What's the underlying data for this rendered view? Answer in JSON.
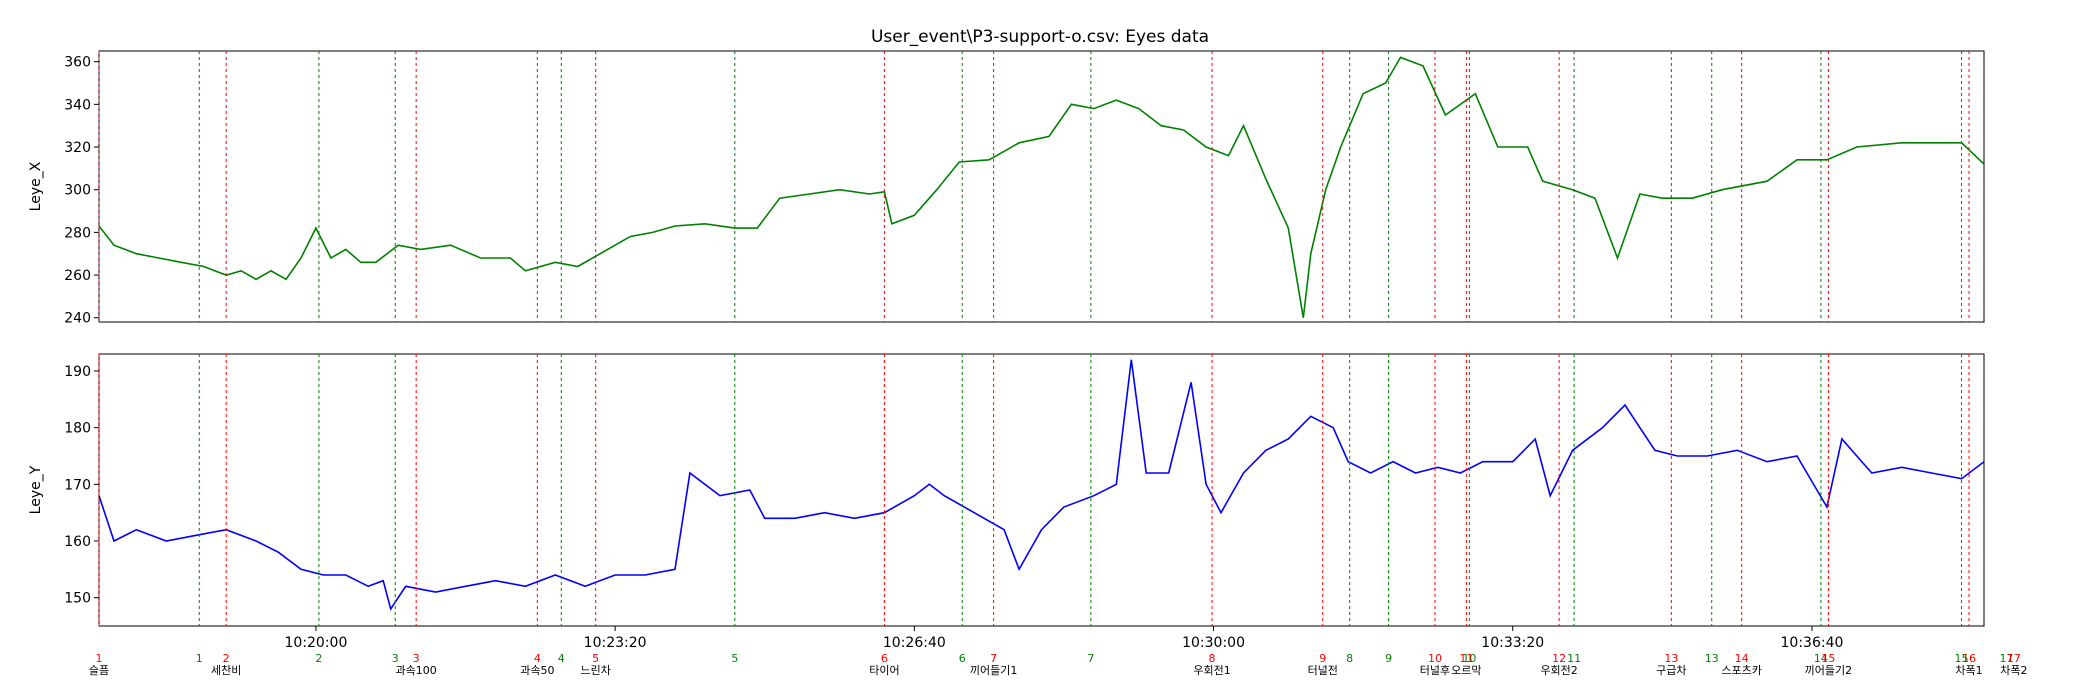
{
  "chart_data": {
    "type": "line",
    "title": "User_event\\P3-support-o.csv: Eyes data",
    "x_range": [
      "10:17:35",
      "10:38:35"
    ],
    "x_ticks": [
      "10:20:00",
      "10:23:20",
      "10:26:40",
      "10:30:00",
      "10:33:20",
      "10:36:40"
    ],
    "grid": false,
    "panels": [
      {
        "ylabel": "Leye_X",
        "color": "#008000",
        "ylim": [
          238,
          365
        ],
        "yticks": [
          240,
          260,
          280,
          300,
          320,
          340,
          360
        ],
        "series": [
          {
            "values": [
              [
                "10:17:35",
                283
              ],
              [
                "10:17:45",
                274
              ],
              [
                "10:18:00",
                270
              ],
              [
                "10:18:15",
                268
              ],
              [
                "10:18:30",
                266
              ],
              [
                "10:18:45",
                264
              ],
              [
                "10:19:00",
                260
              ],
              [
                "10:19:10",
                262
              ],
              [
                "10:19:20",
                258
              ],
              [
                "10:19:30",
                262
              ],
              [
                "10:19:40",
                258
              ],
              [
                "10:19:50",
                268
              ],
              [
                "10:20:00",
                282
              ],
              [
                "10:20:10",
                268
              ],
              [
                "10:20:20",
                272
              ],
              [
                "10:20:30",
                266
              ],
              [
                "10:20:40",
                266
              ],
              [
                "10:20:55",
                274
              ],
              [
                "10:21:10",
                272
              ],
              [
                "10:21:30",
                274
              ],
              [
                "10:21:50",
                268
              ],
              [
                "10:22:10",
                268
              ],
              [
                "10:22:20",
                262
              ],
              [
                "10:22:40",
                266
              ],
              [
                "10:22:55",
                264
              ],
              [
                "10:23:10",
                270
              ],
              [
                "10:23:20",
                274
              ],
              [
                "10:23:30",
                278
              ],
              [
                "10:23:45",
                280
              ],
              [
                "10:24:00",
                283
              ],
              [
                "10:24:20",
                284
              ],
              [
                "10:24:40",
                282
              ],
              [
                "10:24:55",
                282
              ],
              [
                "10:25:10",
                296
              ],
              [
                "10:25:30",
                298
              ],
              [
                "10:25:50",
                300
              ],
              [
                "10:26:10",
                298
              ],
              [
                "10:26:20",
                299
              ],
              [
                "10:26:25",
                284
              ],
              [
                "10:26:40",
                288
              ],
              [
                "10:26:55",
                300
              ],
              [
                "10:27:10",
                313
              ],
              [
                "10:27:30",
                314
              ],
              [
                "10:27:50",
                322
              ],
              [
                "10:28:10",
                325
              ],
              [
                "10:28:25",
                340
              ],
              [
                "10:28:40",
                338
              ],
              [
                "10:28:55",
                342
              ],
              [
                "10:29:10",
                338
              ],
              [
                "10:29:25",
                330
              ],
              [
                "10:29:40",
                328
              ],
              [
                "10:29:55",
                320
              ],
              [
                "10:30:10",
                316
              ],
              [
                "10:30:20",
                330
              ],
              [
                "10:30:35",
                305
              ],
              [
                "10:30:50",
                282
              ],
              [
                "10:31:00",
                240
              ],
              [
                "10:31:05",
                270
              ],
              [
                "10:31:15",
                300
              ],
              [
                "10:31:25",
                320
              ],
              [
                "10:31:40",
                345
              ],
              [
                "10:31:55",
                350
              ],
              [
                "10:32:05",
                362
              ],
              [
                "10:32:20",
                358
              ],
              [
                "10:32:35",
                335
              ],
              [
                "10:32:55",
                345
              ],
              [
                "10:33:10",
                320
              ],
              [
                "10:33:30",
                320
              ],
              [
                "10:33:40",
                304
              ],
              [
                "10:34:00",
                300
              ],
              [
                "10:34:15",
                296
              ],
              [
                "10:34:30",
                268
              ],
              [
                "10:34:45",
                298
              ],
              [
                "10:35:00",
                296
              ],
              [
                "10:35:20",
                296
              ],
              [
                "10:35:40",
                300
              ],
              [
                "10:36:10",
                304
              ],
              [
                "10:36:30",
                314
              ],
              [
                "10:36:50",
                314
              ],
              [
                "10:37:10",
                320
              ],
              [
                "10:37:40",
                322
              ],
              [
                "10:38:20",
                322
              ],
              [
                "10:38:35",
                312
              ]
            ]
          }
        ]
      },
      {
        "ylabel": "Leye_Y",
        "color": "#0000ff",
        "ylim": [
          145,
          193
        ],
        "yticks": [
          150,
          160,
          170,
          180,
          190
        ],
        "series": [
          {
            "values": [
              [
                "10:17:35",
                168
              ],
              [
                "10:17:45",
                160
              ],
              [
                "10:18:00",
                162
              ],
              [
                "10:18:20",
                160
              ],
              [
                "10:18:40",
                161
              ],
              [
                "10:19:00",
                162
              ],
              [
                "10:19:20",
                160
              ],
              [
                "10:19:35",
                158
              ],
              [
                "10:19:50",
                155
              ],
              [
                "10:20:05",
                154
              ],
              [
                "10:20:20",
                154
              ],
              [
                "10:20:35",
                152
              ],
              [
                "10:20:45",
                153
              ],
              [
                "10:20:50",
                148
              ],
              [
                "10:21:00",
                152
              ],
              [
                "10:21:20",
                151
              ],
              [
                "10:21:40",
                152
              ],
              [
                "10:22:00",
                153
              ],
              [
                "10:22:20",
                152
              ],
              [
                "10:22:40",
                154
              ],
              [
                "10:23:00",
                152
              ],
              [
                "10:23:20",
                154
              ],
              [
                "10:23:40",
                154
              ],
              [
                "10:24:00",
                155
              ],
              [
                "10:24:10",
                172
              ],
              [
                "10:24:30",
                168
              ],
              [
                "10:24:50",
                169
              ],
              [
                "10:25:00",
                164
              ],
              [
                "10:25:20",
                164
              ],
              [
                "10:25:40",
                165
              ],
              [
                "10:26:00",
                164
              ],
              [
                "10:26:20",
                165
              ],
              [
                "10:26:40",
                168
              ],
              [
                "10:26:50",
                170
              ],
              [
                "10:27:00",
                168
              ],
              [
                "10:27:20",
                165
              ],
              [
                "10:27:40",
                162
              ],
              [
                "10:27:50",
                155
              ],
              [
                "10:28:05",
                162
              ],
              [
                "10:28:20",
                166
              ],
              [
                "10:28:40",
                168
              ],
              [
                "10:28:55",
                170
              ],
              [
                "10:29:05",
                192
              ],
              [
                "10:29:15",
                172
              ],
              [
                "10:29:30",
                172
              ],
              [
                "10:29:45",
                188
              ],
              [
                "10:29:55",
                170
              ],
              [
                "10:30:05",
                165
              ],
              [
                "10:30:20",
                172
              ],
              [
                "10:30:35",
                176
              ],
              [
                "10:30:50",
                178
              ],
              [
                "10:31:05",
                182
              ],
              [
                "10:31:20",
                180
              ],
              [
                "10:31:30",
                174
              ],
              [
                "10:31:45",
                172
              ],
              [
                "10:32:00",
                174
              ],
              [
                "10:32:15",
                172
              ],
              [
                "10:32:30",
                173
              ],
              [
                "10:32:45",
                172
              ],
              [
                "10:33:00",
                174
              ],
              [
                "10:33:20",
                174
              ],
              [
                "10:33:35",
                178
              ],
              [
                "10:33:45",
                168
              ],
              [
                "10:34:00",
                176
              ],
              [
                "10:34:20",
                180
              ],
              [
                "10:34:35",
                184
              ],
              [
                "10:34:45",
                180
              ],
              [
                "10:34:55",
                176
              ],
              [
                "10:35:10",
                175
              ],
              [
                "10:35:30",
                175
              ],
              [
                "10:35:50",
                176
              ],
              [
                "10:36:10",
                174
              ],
              [
                "10:36:30",
                175
              ],
              [
                "10:36:50",
                166
              ],
              [
                "10:37:00",
                178
              ],
              [
                "10:37:10",
                175
              ],
              [
                "10:37:20",
                172
              ],
              [
                "10:37:40",
                173
              ],
              [
                "10:38:00",
                172
              ],
              [
                "10:38:20",
                171
              ],
              [
                "10:38:35",
                174
              ]
            ]
          }
        ]
      }
    ],
    "events_green": [
      {
        "time": "10:18:42",
        "number": "1"
      },
      {
        "time": "10:20:02",
        "number": "2"
      },
      {
        "time": "10:20:53",
        "number": "3"
      },
      {
        "time": "10:22:44",
        "number": "4"
      },
      {
        "time": "10:24:40",
        "number": "5"
      },
      {
        "time": "10:27:12",
        "number": "6"
      },
      {
        "time": "10:28:38",
        "number": "7"
      },
      {
        "time": "10:31:31",
        "number": "8"
      },
      {
        "time": "10:31:57",
        "number": "9"
      },
      {
        "time": "10:32:51",
        "number": "10"
      },
      {
        "time": "10:34:01",
        "number": "11"
      },
      {
        "time": "10:35:33",
        "number": "13"
      },
      {
        "time": "10:36:46",
        "number": "14"
      },
      {
        "time": "10:38:20",
        "number": "15"
      },
      {
        "time": "10:38:50",
        "number": "17"
      }
    ],
    "events_red": [
      {
        "time": "10:17:35",
        "number": "1",
        "label": "슬픔"
      },
      {
        "time": "10:19:00",
        "number": "2",
        "label": "세찬비"
      },
      {
        "time": "10:21:07",
        "number": "3",
        "label": "과속100"
      },
      {
        "time": "10:22:28",
        "number": "4",
        "label": "과속50"
      },
      {
        "time": "10:23:07",
        "number": "5",
        "label": "느린차"
      },
      {
        "time": "10:26:20",
        "number": "6",
        "label": "타이어"
      },
      {
        "time": "10:27:33",
        "number": "7",
        "label": "끼어들기1"
      },
      {
        "time": "10:29:59",
        "number": "8",
        "label": "우회전1"
      },
      {
        "time": "10:31:13",
        "number": "9",
        "label": "터널전"
      },
      {
        "time": "10:32:28",
        "number": "10",
        "label": "터널후"
      },
      {
        "time": "10:32:49",
        "number": "11",
        "label": "오르막"
      },
      {
        "time": "10:33:51",
        "number": "12",
        "label": "우회전2"
      },
      {
        "time": "10:35:06",
        "number": "13",
        "label": "구급차"
      },
      {
        "time": "10:35:53",
        "number": "14",
        "label": "스포츠카"
      },
      {
        "time": "10:36:51",
        "number": "15",
        "label": "끼어들기2"
      },
      {
        "time": "10:38:25",
        "number": "16",
        "label": "차폭1"
      },
      {
        "time": "10:38:55",
        "number": "17",
        "label": "차폭2"
      }
    ]
  }
}
